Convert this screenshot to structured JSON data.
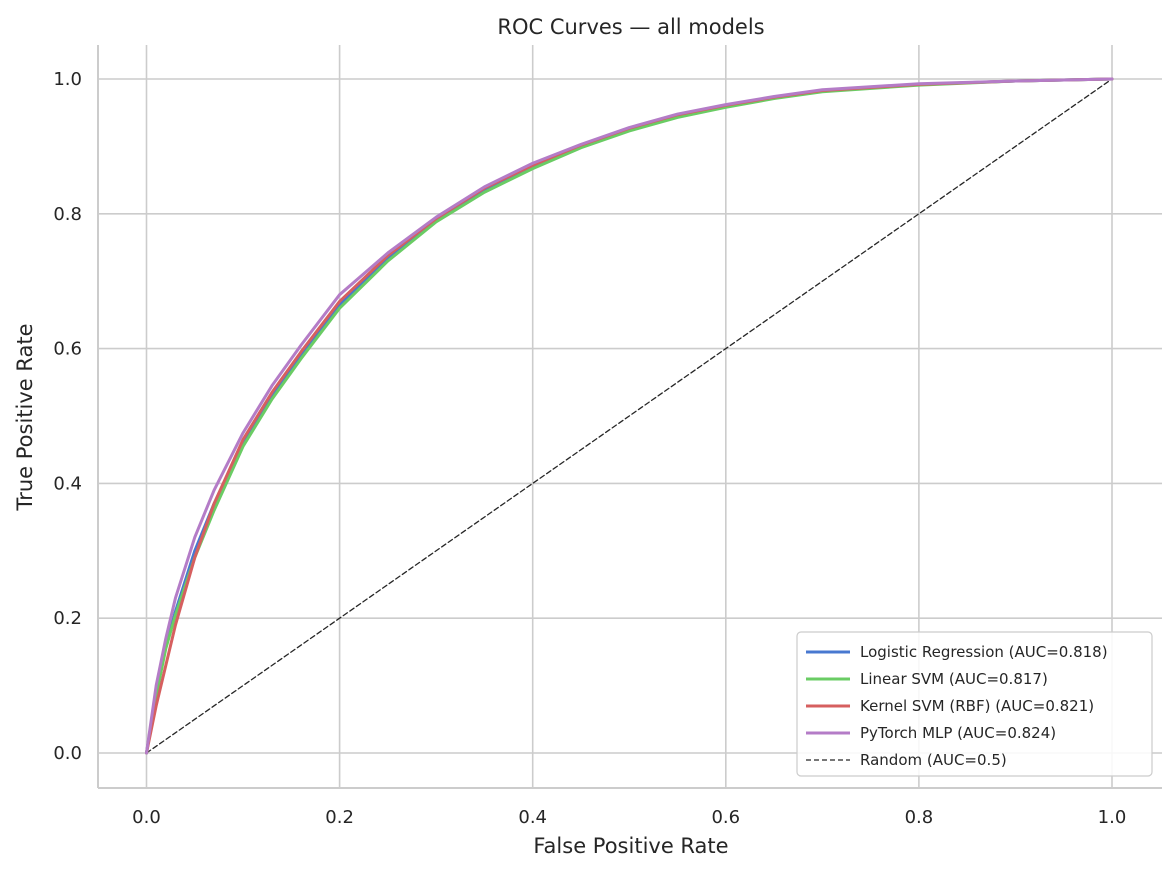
{
  "chart_data": {
    "type": "line",
    "title": "ROC Curves — all models",
    "xlabel": "False Positive Rate",
    "ylabel": "True Positive Rate",
    "xlim": [
      -0.05,
      1.05
    ],
    "ylim": [
      -0.05,
      1.05
    ],
    "xticks": [
      "0.0",
      "0.2",
      "0.4",
      "0.6",
      "0.8",
      "1.0"
    ],
    "yticks": [
      "0.0",
      "0.2",
      "0.4",
      "0.6",
      "0.8",
      "1.0"
    ],
    "grid": true,
    "legend_position": "bottom-right",
    "series": [
      {
        "name": "Logistic Regression  (AUC=0.818)",
        "color": "#4878d0",
        "style": "solid",
        "x": [
          0.0,
          0.01,
          0.02,
          0.03,
          0.05,
          0.07,
          0.1,
          0.13,
          0.16,
          0.2,
          0.25,
          0.3,
          0.35,
          0.4,
          0.45,
          0.5,
          0.55,
          0.6,
          0.65,
          0.7,
          0.8,
          0.9,
          1.0
        ],
        "y": [
          0.0,
          0.09,
          0.16,
          0.21,
          0.3,
          0.37,
          0.46,
          0.53,
          0.59,
          0.665,
          0.735,
          0.79,
          0.835,
          0.87,
          0.9,
          0.925,
          0.945,
          0.96,
          0.972,
          0.982,
          0.992,
          0.997,
          1.0
        ]
      },
      {
        "name": "Linear SVM  (AUC=0.817)",
        "color": "#6acc64",
        "style": "solid",
        "x": [
          0.0,
          0.01,
          0.02,
          0.03,
          0.05,
          0.07,
          0.1,
          0.13,
          0.16,
          0.2,
          0.25,
          0.3,
          0.35,
          0.4,
          0.45,
          0.5,
          0.55,
          0.6,
          0.65,
          0.7,
          0.8,
          0.9,
          1.0
        ],
        "y": [
          0.0,
          0.085,
          0.155,
          0.205,
          0.29,
          0.36,
          0.455,
          0.525,
          0.585,
          0.66,
          0.73,
          0.788,
          0.832,
          0.867,
          0.898,
          0.923,
          0.943,
          0.958,
          0.971,
          0.981,
          0.991,
          0.997,
          1.0
        ]
      },
      {
        "name": "Kernel SVM (RBF)  (AUC=0.821)",
        "color": "#d65f5f",
        "style": "solid",
        "x": [
          0.0,
          0.01,
          0.02,
          0.03,
          0.05,
          0.07,
          0.1,
          0.13,
          0.16,
          0.2,
          0.25,
          0.3,
          0.35,
          0.4,
          0.45,
          0.5,
          0.55,
          0.6,
          0.65,
          0.7,
          0.8,
          0.9,
          1.0
        ],
        "y": [
          0.0,
          0.07,
          0.13,
          0.19,
          0.29,
          0.37,
          0.465,
          0.535,
          0.595,
          0.67,
          0.738,
          0.793,
          0.838,
          0.872,
          0.902,
          0.927,
          0.947,
          0.961,
          0.973,
          0.983,
          0.992,
          0.997,
          1.0
        ]
      },
      {
        "name": "PyTorch MLP  (AUC=0.824)",
        "color": "#b47cc7",
        "style": "solid",
        "x": [
          0.0,
          0.01,
          0.02,
          0.03,
          0.05,
          0.07,
          0.1,
          0.13,
          0.16,
          0.2,
          0.25,
          0.3,
          0.35,
          0.4,
          0.45,
          0.5,
          0.55,
          0.6,
          0.65,
          0.7,
          0.8,
          0.9,
          1.0
        ],
        "y": [
          0.0,
          0.1,
          0.17,
          0.23,
          0.32,
          0.39,
          0.475,
          0.545,
          0.605,
          0.68,
          0.742,
          0.795,
          0.84,
          0.875,
          0.903,
          0.928,
          0.948,
          0.962,
          0.974,
          0.984,
          0.993,
          0.997,
          1.0
        ]
      },
      {
        "name": "Random (AUC=0.5)",
        "color": "#262626",
        "style": "dashed",
        "x": [
          0.0,
          1.0
        ],
        "y": [
          0.0,
          1.0
        ]
      }
    ]
  }
}
